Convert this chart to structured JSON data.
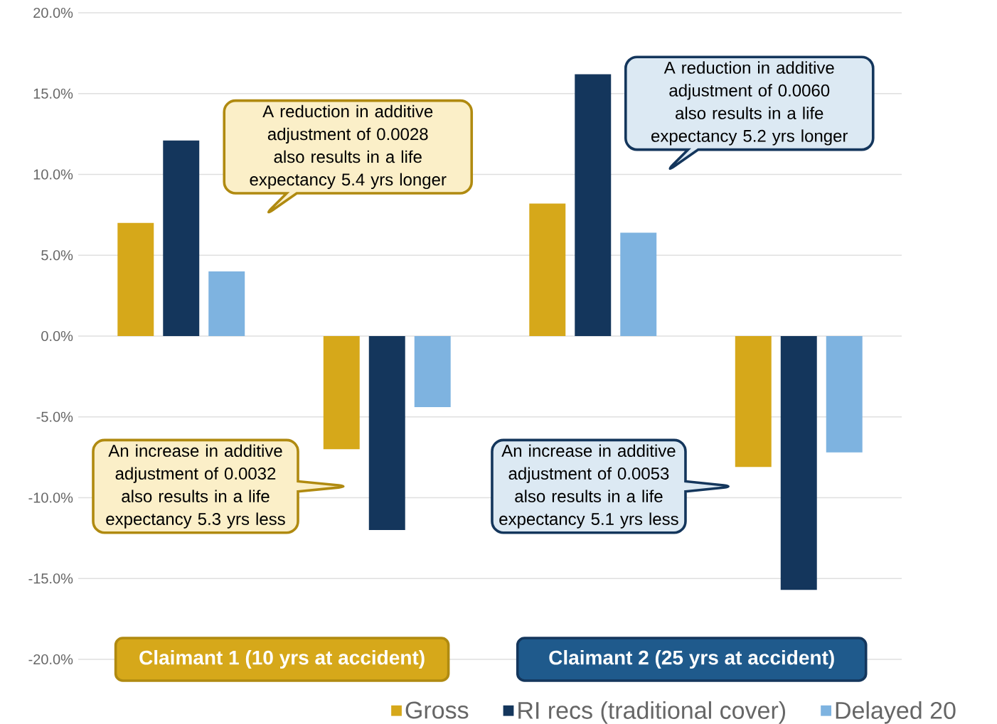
{
  "chart_data": {
    "type": "bar",
    "categories": [
      null,
      null,
      null,
      null
    ],
    "series": [
      {
        "name": "Gross",
        "color": "#d6a81a",
        "values": [
          7.0,
          -7.0,
          8.2,
          -8.1
        ]
      },
      {
        "name": "RI recs (traditional cover)",
        "color": "#14365c",
        "values": [
          12.1,
          -12.0,
          16.2,
          -15.7
        ]
      },
      {
        "name": "Delayed 20",
        "color": "#7eb3e0",
        "values": [
          4.0,
          -4.4,
          6.4,
          -7.2
        ]
      }
    ],
    "ylim": [
      -20,
      20
    ],
    "yticks": [
      {
        "value": -20,
        "label": "-20.0%"
      },
      {
        "value": -15,
        "label": "-15.0%"
      },
      {
        "value": -10,
        "label": "-10.0%"
      },
      {
        "value": -5,
        "label": "-5.0%"
      },
      {
        "value": 0,
        "label": "0.0%"
      },
      {
        "value": 5,
        "label": "5.0%"
      },
      {
        "value": 10,
        "label": "10.0%"
      },
      {
        "value": 15,
        "label": "15.0%"
      },
      {
        "value": 20,
        "label": "20.0%"
      }
    ],
    "grid": "y",
    "legend": "bottom",
    "annotations": [
      "A reduction in additive adjustment of 0.0028 also results in a life expectancy 5.4 yrs longer",
      "A reduction in additive adjustment of 0.0060 also results in a life expectancy 5.2 yrs longer",
      "An increase in additive adjustment of 0.0032 also results in a life expectancy 5.3 yrs less",
      "An increase in additive adjustment of 0.0053 also results in a life expectancy 5.1 yrs less",
      "Claimant 1 (10 yrs at accident)",
      "Claimant 2 (25 yrs at accident)"
    ]
  }
}
